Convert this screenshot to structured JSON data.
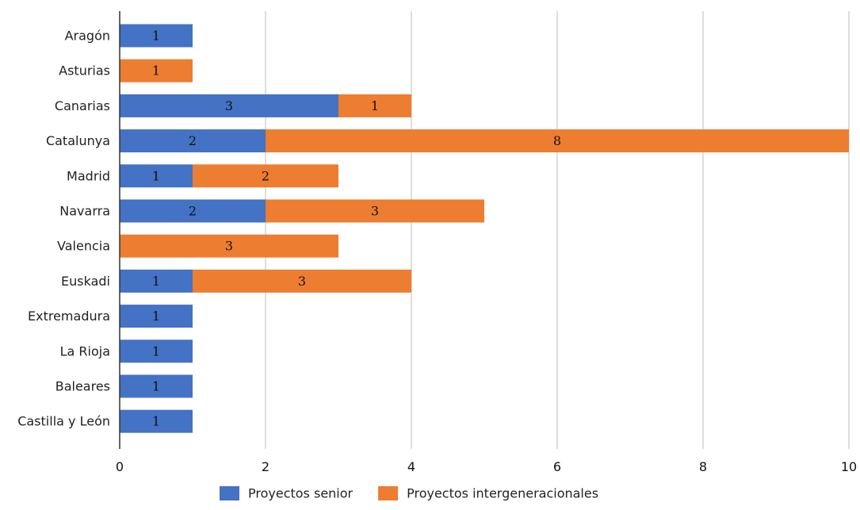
{
  "chart_data": {
    "type": "bar",
    "orientation": "horizontal",
    "stacked": true,
    "categories": [
      "Aragón",
      "Asturias",
      "Canarias",
      "Catalunya",
      "Madrid",
      "Navarra",
      "Valencia",
      "Euskadi",
      "Extremadura",
      "La Rioja",
      "Baleares",
      "Castilla y León"
    ],
    "series": [
      {
        "name": "Proyectos senior",
        "color": "#4472c4",
        "values": [
          1,
          0,
          3,
          2,
          1,
          2,
          0,
          1,
          1,
          1,
          1,
          1
        ]
      },
      {
        "name": "Proyectos intergeneracionales",
        "color": "#ed7d31",
        "values": [
          0,
          1,
          1,
          8,
          2,
          3,
          3,
          3,
          0,
          0,
          0,
          0
        ]
      }
    ],
    "xticks": [
      0,
      2,
      4,
      6,
      8,
      10
    ],
    "xlim": [
      0,
      10
    ],
    "grid": "vertical",
    "legend": "bottom"
  }
}
